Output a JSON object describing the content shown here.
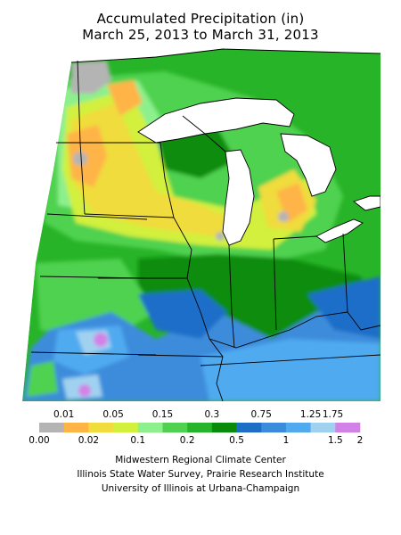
{
  "title": {
    "line1": "Accumulated Precipitation (in)",
    "line2": "March 25, 2013 to March 31, 2013"
  },
  "legend": {
    "upper_ticks": [
      "0.01",
      "0.05",
      "0.15",
      "0.3",
      "0.75",
      "1.25",
      "1.75"
    ],
    "lower_ticks": [
      "0.00",
      "0.02",
      "0.1",
      "0.2",
      "0.5",
      "1",
      "1.5",
      "2"
    ],
    "colors": [
      "#b4b4b4",
      "#ffb446",
      "#f0dc3c",
      "#d2f03c",
      "#8cf08c",
      "#50d250",
      "#28b428",
      "#0a8c0a",
      "#1e6ec8",
      "#3c8cdc",
      "#50aaf0",
      "#a0d2f0",
      "#d282e6"
    ]
  },
  "credits": {
    "line1": "Midwestern Regional Climate Center",
    "line2": "Illinois State Water Survey, Prairie Research Institute",
    "line3": "University of Illinois at Urbana-Champaign"
  },
  "palette": {
    "gray": "#b4b4b4",
    "orange": "#ffb446",
    "yellow": "#f0dc3c",
    "yellow_green": "#d2f03c",
    "light_green": "#8cf08c",
    "green": "#50d250",
    "mid_green": "#28b428",
    "dark_green": "#0a8c0a",
    "dark_blue": "#1e6ec8",
    "blue": "#3c8cdc",
    "light_blue": "#50aaf0",
    "pale_blue": "#a0d2f0",
    "purple": "#d282e6",
    "lakes": "#ffffff"
  }
}
